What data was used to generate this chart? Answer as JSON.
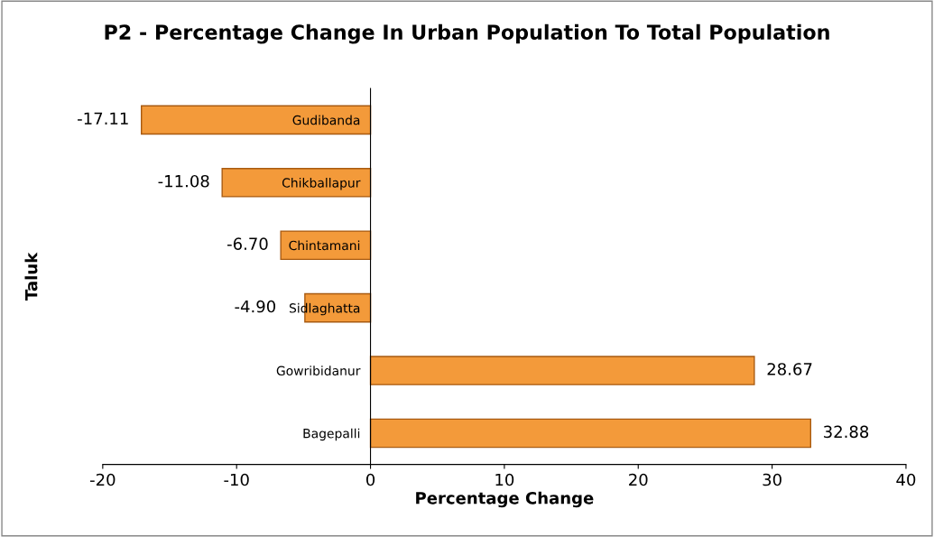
{
  "chart_data": {
    "type": "bar",
    "orientation": "horizontal",
    "title": "P2 - Percentage Change In Urban Population To Total Population",
    "xlabel": "Percentage Change",
    "ylabel": "Taluk",
    "categories": [
      "Gudibanda",
      "Chikballapur",
      "Chintamani",
      "Sidlaghatta",
      "Gowribidanur",
      "Bagepalli"
    ],
    "values": [
      -17.11,
      -11.08,
      -6.7,
      -4.9,
      28.67,
      32.88
    ],
    "value_labels": [
      "-17.11",
      "-11.08",
      "-6.70",
      "-4.90",
      "28.67",
      "32.88"
    ],
    "color": "#f39a3a",
    "xlim": [
      -20,
      40
    ],
    "xticks": [
      -20,
      -10,
      0,
      10,
      20,
      30,
      40
    ],
    "grid": false,
    "legend": false
  }
}
